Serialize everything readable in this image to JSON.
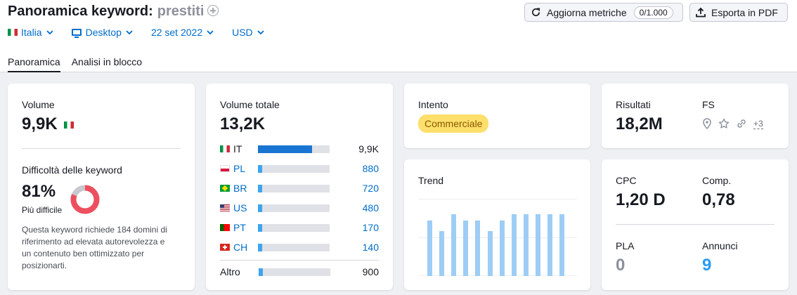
{
  "header": {
    "title": "Panoramica keyword:",
    "keyword": "prestiti",
    "refresh_label": "Aggiorna metriche",
    "refresh_counter": "0/1.000",
    "export_label": "Esporta in PDF"
  },
  "filters": {
    "country": "Italia",
    "device": "Desktop",
    "date": "22 set 2022",
    "currency": "USD"
  },
  "tabs": [
    {
      "label": "Panoramica",
      "active": true
    },
    {
      "label": "Analisi in blocco",
      "active": false
    }
  ],
  "volume": {
    "label": "Volume",
    "value": "9,9K"
  },
  "difficulty": {
    "label": "Difficoltà delle keyword",
    "value": "81%",
    "level": "Più difficile",
    "percent": 81,
    "description_lines": [
      "Questa keyword richiede 184 domini di",
      "riferimento ad elevata autorevolezza e",
      "un contenuto ben ottimizzato per",
      "posizionarti."
    ]
  },
  "global_volume": {
    "label": "Volume totale",
    "value": "13,2K",
    "rows": [
      {
        "code": "IT",
        "value": "9,9K",
        "fraction": 0.75,
        "flag": "it"
      },
      {
        "code": "PL",
        "value": "880",
        "fraction": 0.06,
        "flag": "pl"
      },
      {
        "code": "BR",
        "value": "720",
        "fraction": 0.05,
        "flag": "br"
      },
      {
        "code": "US",
        "value": "480",
        "fraction": 0.04,
        "flag": "us"
      },
      {
        "code": "PT",
        "value": "170",
        "fraction": 0.02,
        "flag": "pt"
      },
      {
        "code": "CH",
        "value": "140",
        "fraction": 0.02,
        "flag": "ch"
      }
    ],
    "other_label": "Altro",
    "other_value": "900",
    "other_fraction": 0.06
  },
  "intent": {
    "label": "Intento",
    "value": "Commerciale"
  },
  "trend": {
    "label": "Trend",
    "values": [
      0.72,
      0.58,
      0.8,
      0.72,
      0.72,
      0.58,
      0.72,
      0.8,
      0.8,
      0.8,
      0.8,
      0.8
    ]
  },
  "results": {
    "label": "Risultati",
    "value": "18,2M",
    "fs_label": "FS",
    "fs_more": "+3"
  },
  "ads": {
    "cpc_label": "CPC",
    "cpc_value": "1,20 D",
    "comp_label": "Comp.",
    "comp_value": "0,78",
    "pla_label": "PLA",
    "pla_value": "0",
    "ads_label": "Annunci",
    "ads_value": "9"
  },
  "colors": {
    "link": "#006dca",
    "difficulty_ring": "#ed4f5f",
    "difficulty_track": "#c7c9ce",
    "intent_badge": "#fddf6b",
    "trend_bar": "#9dcdf5"
  }
}
